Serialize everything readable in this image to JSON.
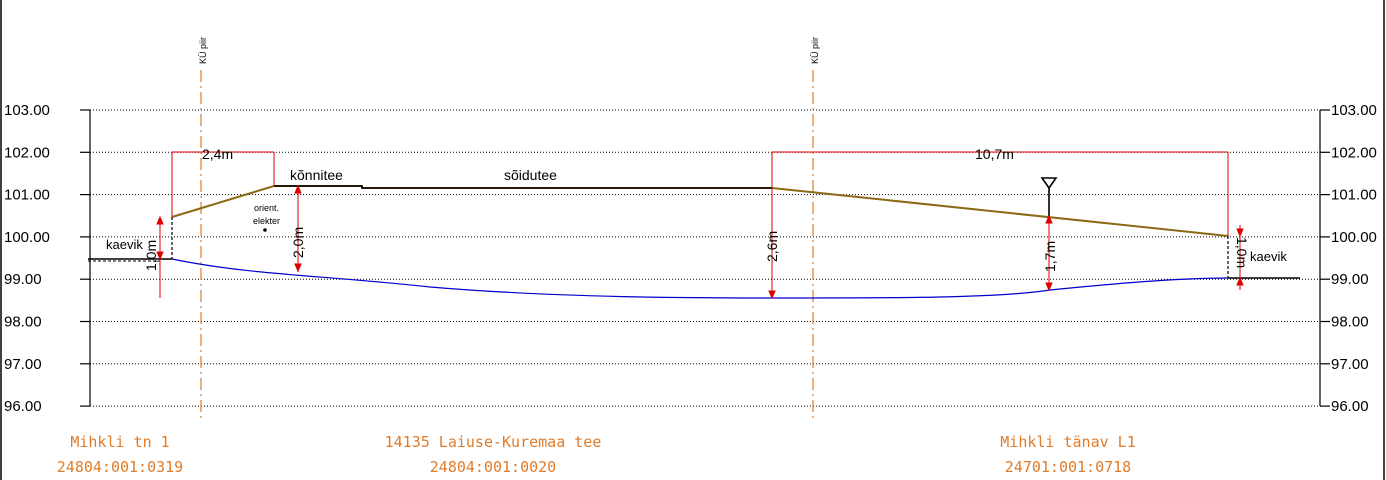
{
  "y_axis": {
    "ticks": [
      "103.00",
      "102.00",
      "101.00",
      "100.00",
      "99.00",
      "98.00",
      "97.00",
      "96.00"
    ]
  },
  "labels": {
    "boundary_label": "KÜ piir",
    "konnitee": "kõnnitee",
    "soidutee": "sõidutee",
    "kaevik_left": "kaevik",
    "kaevik_right": "kaevik",
    "orient_1": "orient.",
    "orient_2": "elekter"
  },
  "dimensions": {
    "width_left": "2,4m",
    "width_right": "10,7m",
    "depth_1": "1,0m",
    "depth_2": "2,0m",
    "depth_3": "2,6m",
    "depth_4": "1,7m",
    "depth_5": "1,0m"
  },
  "parcels": [
    {
      "name": "Mihkli tn 1",
      "code": "24804:001:0319"
    },
    {
      "name": "14135 Laiuse-Kuremaa tee",
      "code": "24804:001:0020"
    },
    {
      "name": "Mihkli tänav L1",
      "code": "24701:001:0718"
    }
  ],
  "colors": {
    "ground_line": "#8b6914",
    "pipe_line": "#0000cc",
    "dimension": "#e00000",
    "boundary": "#e07b2a",
    "surface": "#000000"
  }
}
